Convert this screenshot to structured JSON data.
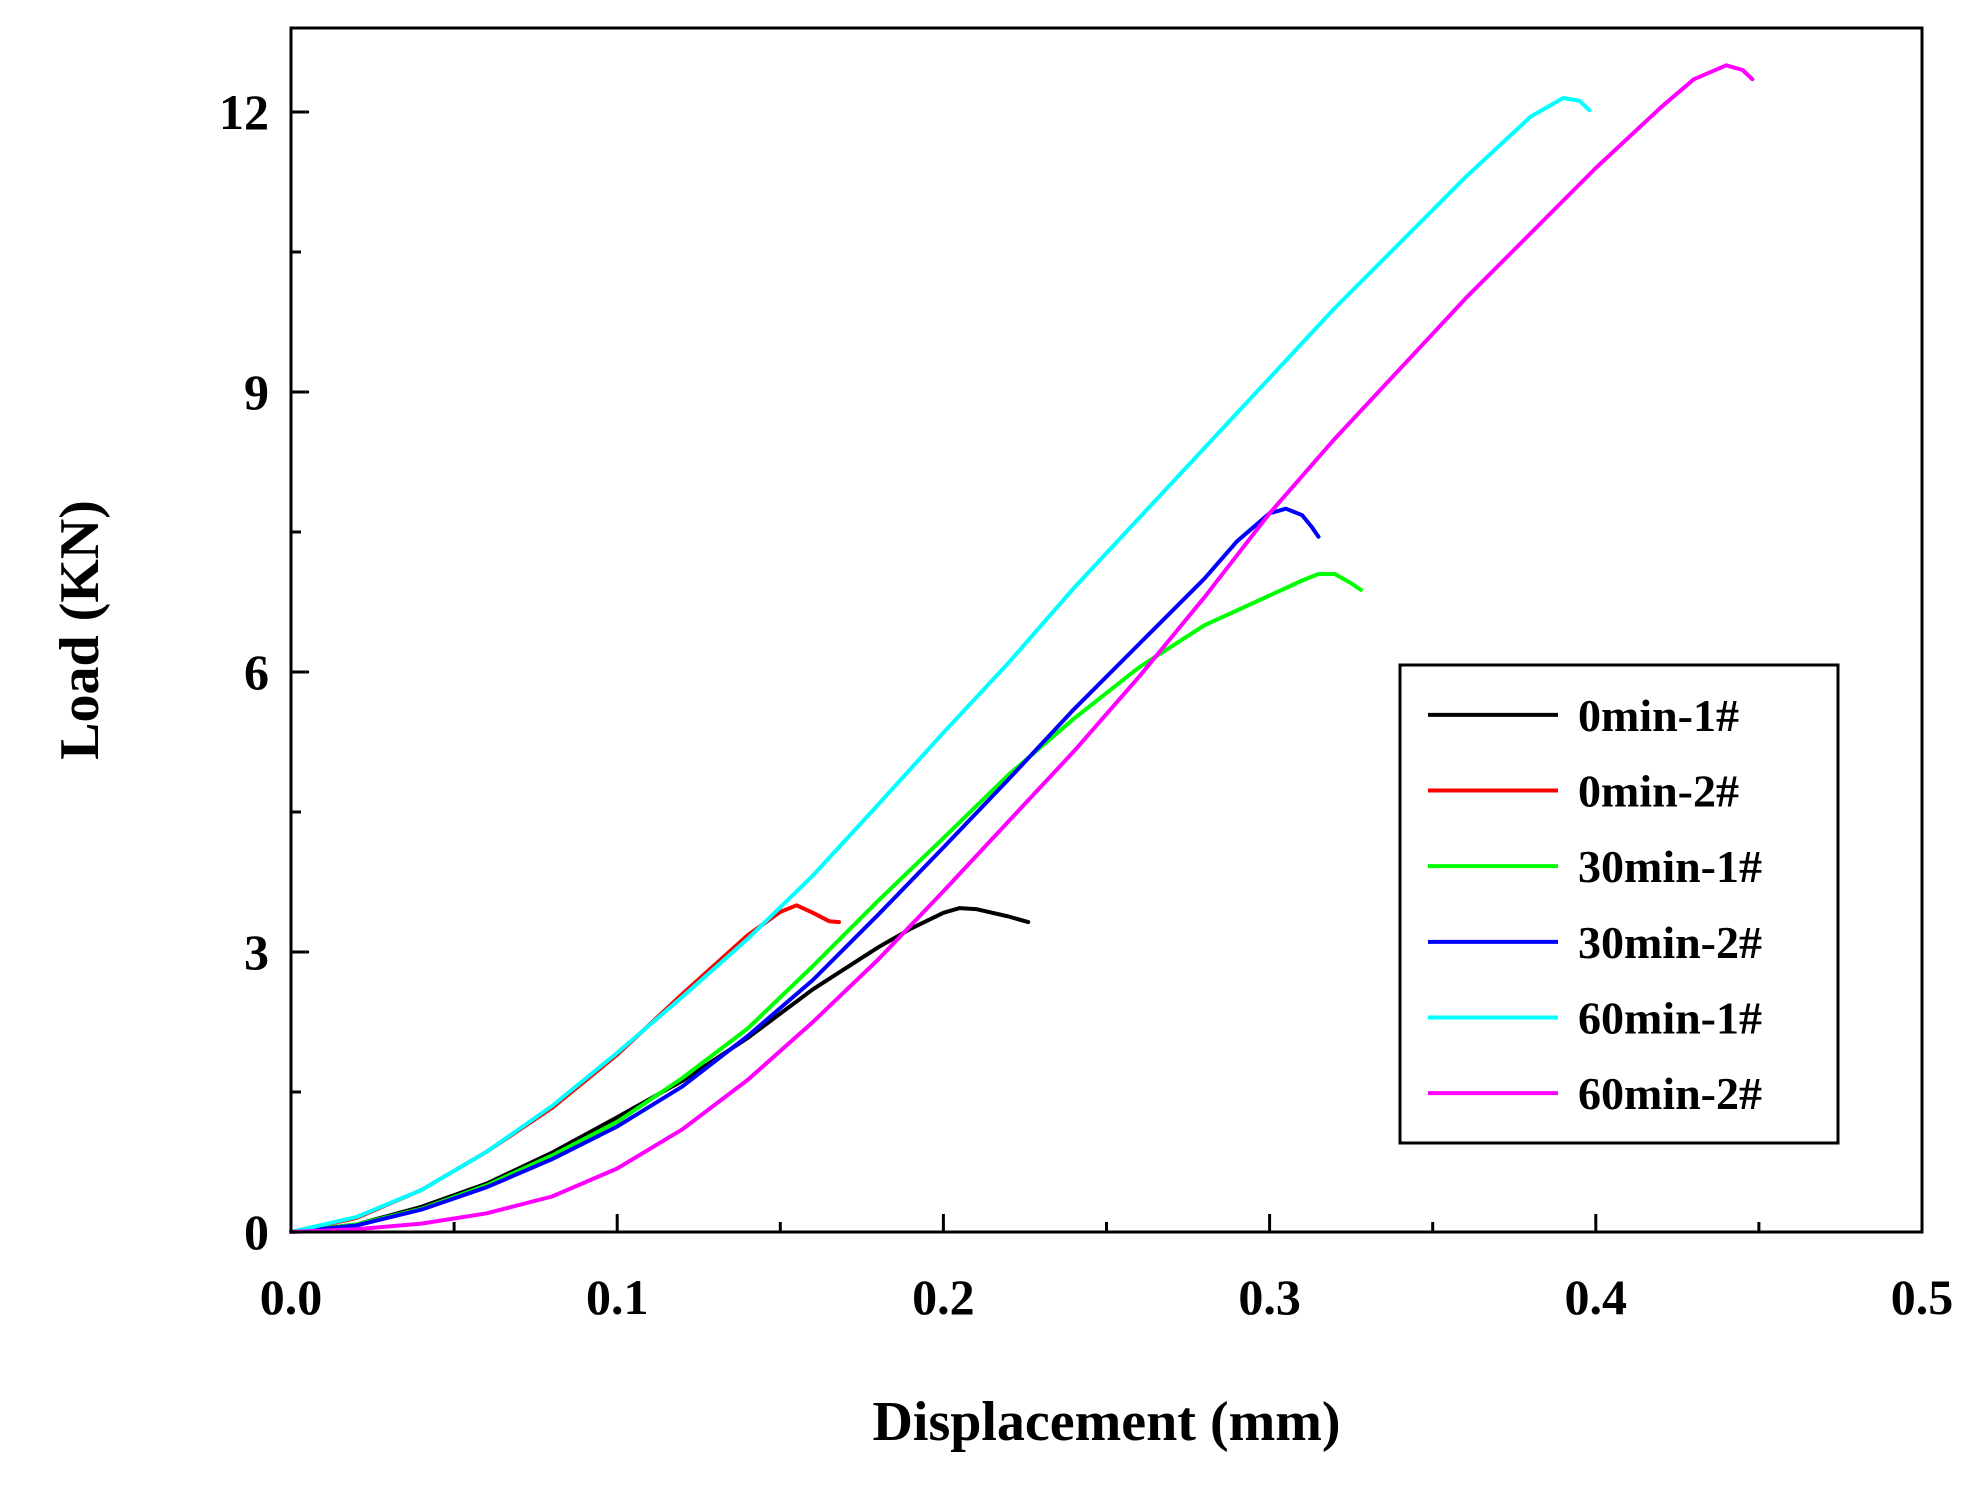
{
  "chart_data": {
    "type": "line",
    "title": "",
    "xlabel": "Displacement (mm)",
    "ylabel": "Load (KN)",
    "xlim": [
      0.0,
      0.5
    ],
    "ylim": [
      0,
      12.9
    ],
    "xticks": [
      0.0,
      0.1,
      0.2,
      0.3,
      0.4,
      0.5
    ],
    "xtick_labels": [
      "0.0",
      "0.1",
      "0.2",
      "0.3",
      "0.4",
      "0.5"
    ],
    "yticks": [
      0,
      3,
      6,
      9,
      12
    ],
    "ytick_labels": [
      "0",
      "3",
      "6",
      "9",
      "12"
    ],
    "x_minor_step": 0.05,
    "y_minor_step": 1.5,
    "grid": false,
    "legend_position": "center-right",
    "series": [
      {
        "name": "0min-1#",
        "color": "#000000",
        "points": [
          [
            0,
            0
          ],
          [
            0.02,
            0.08
          ],
          [
            0.04,
            0.27
          ],
          [
            0.06,
            0.52
          ],
          [
            0.08,
            0.85
          ],
          [
            0.1,
            1.23
          ],
          [
            0.12,
            1.62
          ],
          [
            0.14,
            2.08
          ],
          [
            0.16,
            2.6
          ],
          [
            0.18,
            3.05
          ],
          [
            0.19,
            3.25
          ],
          [
            0.2,
            3.42
          ],
          [
            0.205,
            3.47
          ],
          [
            0.21,
            3.46
          ],
          [
            0.22,
            3.38
          ],
          [
            0.226,
            3.32
          ]
        ]
      },
      {
        "name": "0min-2#",
        "color": "#ff0000",
        "points": [
          [
            0,
            0
          ],
          [
            0.02,
            0.15
          ],
          [
            0.04,
            0.45
          ],
          [
            0.06,
            0.86
          ],
          [
            0.08,
            1.33
          ],
          [
            0.1,
            1.9
          ],
          [
            0.12,
            2.55
          ],
          [
            0.14,
            3.18
          ],
          [
            0.15,
            3.43
          ],
          [
            0.155,
            3.5
          ],
          [
            0.16,
            3.42
          ],
          [
            0.165,
            3.33
          ],
          [
            0.168,
            3.32
          ]
        ]
      },
      {
        "name": "30min-1#",
        "color": "#00ff00",
        "points": [
          [
            0,
            0
          ],
          [
            0.02,
            0.08
          ],
          [
            0.04,
            0.25
          ],
          [
            0.06,
            0.5
          ],
          [
            0.08,
            0.82
          ],
          [
            0.1,
            1.18
          ],
          [
            0.12,
            1.65
          ],
          [
            0.14,
            2.18
          ],
          [
            0.16,
            2.85
          ],
          [
            0.18,
            3.55
          ],
          [
            0.2,
            4.22
          ],
          [
            0.22,
            4.9
          ],
          [
            0.24,
            5.5
          ],
          [
            0.26,
            6.05
          ],
          [
            0.28,
            6.5
          ],
          [
            0.3,
            6.82
          ],
          [
            0.31,
            6.98
          ],
          [
            0.315,
            7.05
          ],
          [
            0.32,
            7.05
          ],
          [
            0.325,
            6.95
          ],
          [
            0.328,
            6.88
          ]
        ]
      },
      {
        "name": "30min-2#",
        "color": "#0000ff",
        "points": [
          [
            0,
            0
          ],
          [
            0.02,
            0.07
          ],
          [
            0.04,
            0.24
          ],
          [
            0.06,
            0.48
          ],
          [
            0.08,
            0.78
          ],
          [
            0.1,
            1.13
          ],
          [
            0.12,
            1.56
          ],
          [
            0.14,
            2.1
          ],
          [
            0.16,
            2.7
          ],
          [
            0.18,
            3.4
          ],
          [
            0.2,
            4.12
          ],
          [
            0.22,
            4.85
          ],
          [
            0.24,
            5.6
          ],
          [
            0.26,
            6.3
          ],
          [
            0.28,
            7.0
          ],
          [
            0.29,
            7.4
          ],
          [
            0.3,
            7.7
          ],
          [
            0.305,
            7.75
          ],
          [
            0.31,
            7.68
          ],
          [
            0.313,
            7.55
          ],
          [
            0.315,
            7.45
          ]
        ]
      },
      {
        "name": "60min-1#",
        "color": "#00ffff",
        "points": [
          [
            0,
            0
          ],
          [
            0.02,
            0.16
          ],
          [
            0.04,
            0.45
          ],
          [
            0.06,
            0.86
          ],
          [
            0.08,
            1.35
          ],
          [
            0.1,
            1.92
          ],
          [
            0.12,
            2.52
          ],
          [
            0.14,
            3.14
          ],
          [
            0.16,
            3.82
          ],
          [
            0.18,
            4.58
          ],
          [
            0.2,
            5.35
          ],
          [
            0.22,
            6.1
          ],
          [
            0.24,
            6.9
          ],
          [
            0.26,
            7.65
          ],
          [
            0.28,
            8.4
          ],
          [
            0.3,
            9.15
          ],
          [
            0.32,
            9.9
          ],
          [
            0.34,
            10.6
          ],
          [
            0.36,
            11.3
          ],
          [
            0.38,
            11.95
          ],
          [
            0.39,
            12.15
          ],
          [
            0.395,
            12.12
          ],
          [
            0.398,
            12.02
          ]
        ]
      },
      {
        "name": "60min-2#",
        "color": "#ff00ff",
        "points": [
          [
            0,
            0
          ],
          [
            0.02,
            0.03
          ],
          [
            0.04,
            0.09
          ],
          [
            0.06,
            0.2
          ],
          [
            0.08,
            0.38
          ],
          [
            0.1,
            0.68
          ],
          [
            0.12,
            1.1
          ],
          [
            0.14,
            1.63
          ],
          [
            0.16,
            2.25
          ],
          [
            0.18,
            2.92
          ],
          [
            0.2,
            3.65
          ],
          [
            0.22,
            4.4
          ],
          [
            0.24,
            5.15
          ],
          [
            0.26,
            5.95
          ],
          [
            0.28,
            6.8
          ],
          [
            0.3,
            7.7
          ],
          [
            0.32,
            8.5
          ],
          [
            0.34,
            9.25
          ],
          [
            0.36,
            10.0
          ],
          [
            0.38,
            10.7
          ],
          [
            0.4,
            11.4
          ],
          [
            0.42,
            12.05
          ],
          [
            0.43,
            12.35
          ],
          [
            0.44,
            12.5
          ],
          [
            0.445,
            12.45
          ],
          [
            0.448,
            12.35
          ]
        ]
      }
    ]
  }
}
